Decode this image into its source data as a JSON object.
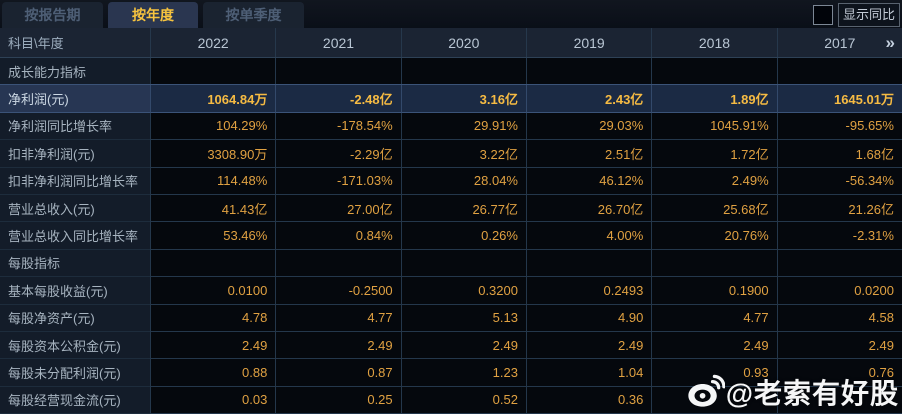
{
  "tabs": [
    {
      "label": "按报告期",
      "active": false
    },
    {
      "label": "按年度",
      "active": true
    },
    {
      "label": "按单季度",
      "active": false
    }
  ],
  "yoy": {
    "label": "显示同比",
    "checked": false
  },
  "table": {
    "corner_label": "科目\\年度",
    "years": [
      "2022",
      "2021",
      "2020",
      "2019",
      "2018",
      "2017"
    ],
    "more_icon": "»",
    "rows": [
      {
        "type": "section",
        "label": "成长能力指标",
        "values": [
          "",
          "",
          "",
          "",
          "",
          ""
        ]
      },
      {
        "type": "highlight",
        "label": "净利润(元)",
        "values": [
          "1064.84万",
          "-2.48亿",
          "3.16亿",
          "2.43亿",
          "1.89亿",
          "1645.01万"
        ]
      },
      {
        "type": "data",
        "label": "净利润同比增长率",
        "values": [
          "104.29%",
          "-178.54%",
          "29.91%",
          "29.03%",
          "1045.91%",
          "-95.65%"
        ]
      },
      {
        "type": "data",
        "label": "扣非净利润(元)",
        "values": [
          "3308.90万",
          "-2.29亿",
          "3.22亿",
          "2.51亿",
          "1.72亿",
          "1.68亿"
        ]
      },
      {
        "type": "data",
        "label": "扣非净利润同比增长率",
        "values": [
          "114.48%",
          "-171.03%",
          "28.04%",
          "46.12%",
          "2.49%",
          "-56.34%"
        ]
      },
      {
        "type": "data",
        "label": "营业总收入(元)",
        "values": [
          "41.43亿",
          "27.00亿",
          "26.77亿",
          "26.70亿",
          "25.68亿",
          "21.26亿"
        ]
      },
      {
        "type": "data",
        "label": "营业总收入同比增长率",
        "values": [
          "53.46%",
          "0.84%",
          "0.26%",
          "4.00%",
          "20.76%",
          "-2.31%"
        ]
      },
      {
        "type": "section",
        "label": "每股指标",
        "values": [
          "",
          "",
          "",
          "",
          "",
          ""
        ]
      },
      {
        "type": "data",
        "label": "基本每股收益(元)",
        "values": [
          "0.0100",
          "-0.2500",
          "0.3200",
          "0.2493",
          "0.1900",
          "0.0200"
        ]
      },
      {
        "type": "data",
        "label": "每股净资产(元)",
        "values": [
          "4.78",
          "4.77",
          "5.13",
          "4.90",
          "4.77",
          "4.58"
        ]
      },
      {
        "type": "data",
        "label": "每股资本公积金(元)",
        "values": [
          "2.49",
          "2.49",
          "2.49",
          "2.49",
          "2.49",
          "2.49"
        ]
      },
      {
        "type": "data",
        "label": "每股未分配利润(元)",
        "values": [
          "0.88",
          "0.87",
          "1.23",
          "1.04",
          "0.93",
          "0.76"
        ]
      },
      {
        "type": "data",
        "label": "每股经营现金流(元)",
        "values": [
          "0.03",
          "0.25",
          "0.52",
          "0.36",
          "",
          ""
        ]
      }
    ]
  },
  "watermark": {
    "icon": "weibo-icon",
    "text": "@老索有好股"
  },
  "colors": {
    "accent_gold": "#f6c33f",
    "value_orange": "#e0a142",
    "highlight_row_bg": "#1b2a44",
    "header_bg": "#1b2433",
    "label_cell_bg": "#131c29",
    "grid_line": "#24374b"
  }
}
